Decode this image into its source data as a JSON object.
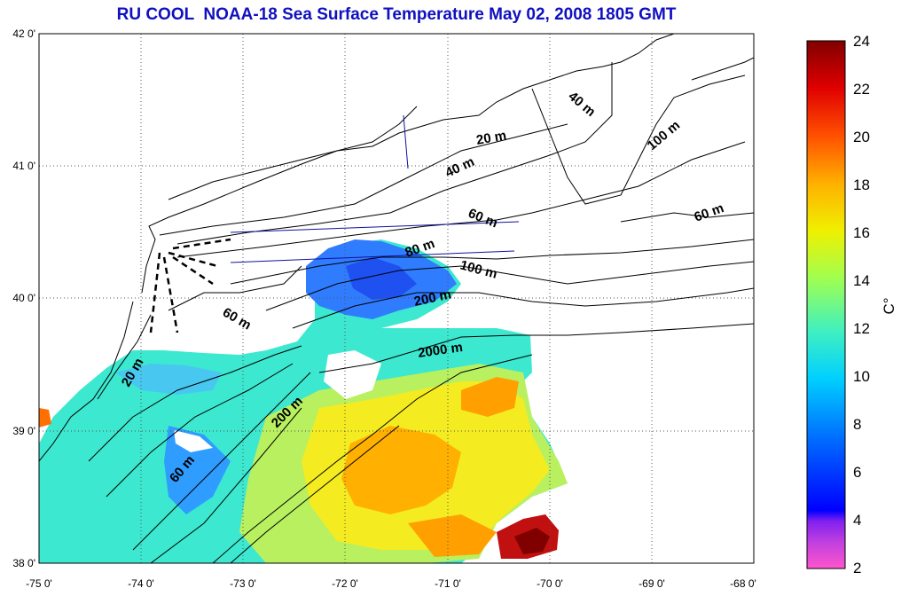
{
  "title": "RU COOL  NOAA-18 Sea Surface Temperature May 02, 2008 1805 GMT",
  "map": {
    "lon_range": [
      -75,
      -68
    ],
    "lat_range": [
      38,
      42
    ],
    "lon_ticks": [
      "-75 0'",
      "-74 0'",
      "-73 0'",
      "-72 0'",
      "-71 0'",
      "-70 0'",
      "-69 0'",
      "-68 0'"
    ],
    "lat_ticks": [
      "42 0'",
      "41 0'",
      "40 0'",
      "39 0'",
      "38 0'"
    ],
    "grid": "dotted",
    "contour_labels": {
      "c20_ne": "20 m",
      "c40_ne": "40 m",
      "c40_nne": "40 m",
      "c100_ne": "100 m",
      "c60_e": "60 m",
      "c60_n": "60 m",
      "c80": "80 m",
      "c100": "100 m",
      "c200_n": "200 m",
      "c2000": "2000 m",
      "c60_w": "60 m",
      "c20_w": "20 m",
      "c200_s": "200 m",
      "c60_s": "60 m"
    }
  },
  "colorbar": {
    "min": 2,
    "max": 24,
    "ticks": [
      "24",
      "22",
      "20",
      "18",
      "16",
      "14",
      "12",
      "10",
      "8",
      "6",
      "4",
      "2"
    ],
    "unit_label": "C°",
    "colors": [
      "#ff55cc",
      "#a030e0",
      "#0000ff",
      "#0090ff",
      "#00e0ff",
      "#60ff90",
      "#e0ff20",
      "#ffd000",
      "#ff8000",
      "#ff1000",
      "#b00000",
      "#800000"
    ]
  }
}
